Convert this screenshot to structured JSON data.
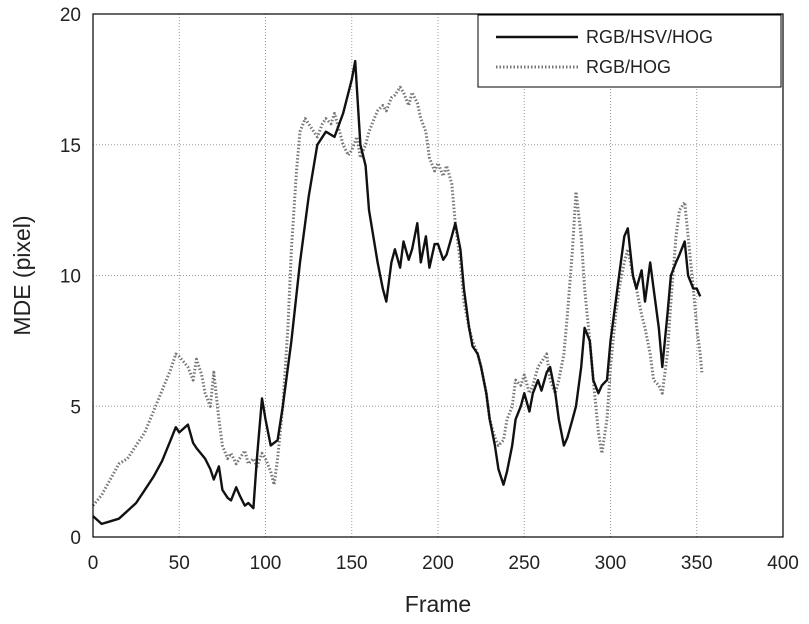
{
  "chart_data": {
    "type": "line",
    "title": "",
    "xlabel": "Frame",
    "ylabel": "MDE (pixel)",
    "xlim": [
      0,
      400
    ],
    "ylim": [
      0,
      20
    ],
    "xticks": [
      0,
      50,
      100,
      150,
      200,
      250,
      300,
      350,
      400
    ],
    "yticks": [
      0,
      5,
      10,
      15,
      20
    ],
    "grid": true,
    "legend_position": "top-right",
    "series": [
      {
        "name": "RGB/HSV/HOG",
        "style": "solid",
        "color": "#111111",
        "points": [
          [
            0,
            0.8
          ],
          [
            5,
            0.5
          ],
          [
            10,
            0.6
          ],
          [
            15,
            0.7
          ],
          [
            20,
            1.0
          ],
          [
            25,
            1.3
          ],
          [
            30,
            1.8
          ],
          [
            35,
            2.3
          ],
          [
            40,
            2.9
          ],
          [
            45,
            3.7
          ],
          [
            48,
            4.2
          ],
          [
            50,
            4.0
          ],
          [
            55,
            4.3
          ],
          [
            58,
            3.6
          ],
          [
            60,
            3.4
          ],
          [
            65,
            3.0
          ],
          [
            68,
            2.6
          ],
          [
            70,
            2.2
          ],
          [
            73,
            2.7
          ],
          [
            75,
            1.8
          ],
          [
            78,
            1.5
          ],
          [
            80,
            1.4
          ],
          [
            83,
            1.9
          ],
          [
            85,
            1.6
          ],
          [
            88,
            1.2
          ],
          [
            90,
            1.3
          ],
          [
            93,
            1.1
          ],
          [
            95,
            3.0
          ],
          [
            98,
            5.3
          ],
          [
            100,
            4.5
          ],
          [
            103,
            3.5
          ],
          [
            107,
            3.7
          ],
          [
            110,
            5.0
          ],
          [
            115,
            7.5
          ],
          [
            120,
            10.5
          ],
          [
            125,
            13.0
          ],
          [
            130,
            15.0
          ],
          [
            135,
            15.5
          ],
          [
            140,
            15.3
          ],
          [
            145,
            16.2
          ],
          [
            150,
            17.5
          ],
          [
            152,
            18.2
          ],
          [
            155,
            15.0
          ],
          [
            158,
            14.2
          ],
          [
            160,
            12.5
          ],
          [
            165,
            10.5
          ],
          [
            168,
            9.5
          ],
          [
            170,
            9.0
          ],
          [
            173,
            10.5
          ],
          [
            175,
            11.0
          ],
          [
            178,
            10.3
          ],
          [
            180,
            11.3
          ],
          [
            183,
            10.6
          ],
          [
            185,
            11.0
          ],
          [
            188,
            12.0
          ],
          [
            190,
            10.5
          ],
          [
            193,
            11.5
          ],
          [
            195,
            10.3
          ],
          [
            198,
            11.2
          ],
          [
            200,
            11.2
          ],
          [
            203,
            10.6
          ],
          [
            205,
            10.8
          ],
          [
            208,
            11.5
          ],
          [
            210,
            12.0
          ],
          [
            213,
            11.0
          ],
          [
            215,
            9.5
          ],
          [
            218,
            8.0
          ],
          [
            220,
            7.3
          ],
          [
            223,
            7.0
          ],
          [
            225,
            6.5
          ],
          [
            228,
            5.5
          ],
          [
            230,
            4.5
          ],
          [
            233,
            3.5
          ],
          [
            235,
            2.6
          ],
          [
            238,
            2.0
          ],
          [
            240,
            2.5
          ],
          [
            243,
            3.5
          ],
          [
            245,
            4.5
          ],
          [
            248,
            5.0
          ],
          [
            250,
            5.5
          ],
          [
            253,
            4.8
          ],
          [
            255,
            5.5
          ],
          [
            258,
            6.0
          ],
          [
            260,
            5.6
          ],
          [
            263,
            6.3
          ],
          [
            265,
            6.5
          ],
          [
            268,
            5.5
          ],
          [
            270,
            4.5
          ],
          [
            273,
            3.5
          ],
          [
            275,
            3.8
          ],
          [
            278,
            4.5
          ],
          [
            280,
            5.0
          ],
          [
            283,
            6.5
          ],
          [
            285,
            8.0
          ],
          [
            288,
            7.5
          ],
          [
            290,
            6.0
          ],
          [
            293,
            5.5
          ],
          [
            295,
            5.8
          ],
          [
            298,
            6.0
          ],
          [
            300,
            7.5
          ],
          [
            303,
            9.0
          ],
          [
            305,
            10.0
          ],
          [
            308,
            11.5
          ],
          [
            310,
            11.8
          ],
          [
            313,
            10.0
          ],
          [
            315,
            9.5
          ],
          [
            318,
            10.2
          ],
          [
            320,
            9.0
          ],
          [
            323,
            10.5
          ],
          [
            325,
            9.5
          ],
          [
            328,
            8.0
          ],
          [
            330,
            6.5
          ],
          [
            333,
            8.5
          ],
          [
            335,
            10.0
          ],
          [
            338,
            10.5
          ],
          [
            340,
            10.8
          ],
          [
            343,
            11.3
          ],
          [
            345,
            10.0
          ],
          [
            348,
            9.5
          ],
          [
            350,
            9.5
          ],
          [
            352,
            9.2
          ]
        ]
      },
      {
        "name": "RGB/HOG",
        "style": "dotted",
        "color": "#777777",
        "points": [
          [
            0,
            1.2
          ],
          [
            5,
            1.6
          ],
          [
            10,
            2.2
          ],
          [
            15,
            2.8
          ],
          [
            20,
            3.0
          ],
          [
            25,
            3.5
          ],
          [
            30,
            4.0
          ],
          [
            35,
            4.8
          ],
          [
            40,
            5.6
          ],
          [
            45,
            6.4
          ],
          [
            48,
            7.0
          ],
          [
            50,
            6.9
          ],
          [
            55,
            6.5
          ],
          [
            58,
            6.0
          ],
          [
            60,
            6.8
          ],
          [
            63,
            6.2
          ],
          [
            65,
            5.5
          ],
          [
            68,
            5.0
          ],
          [
            70,
            6.3
          ],
          [
            73,
            4.5
          ],
          [
            75,
            3.5
          ],
          [
            78,
            3.0
          ],
          [
            80,
            3.2
          ],
          [
            83,
            2.8
          ],
          [
            85,
            3.0
          ],
          [
            88,
            3.3
          ],
          [
            90,
            2.8
          ],
          [
            93,
            3.0
          ],
          [
            95,
            2.7
          ],
          [
            98,
            3.2
          ],
          [
            100,
            3.0
          ],
          [
            103,
            2.5
          ],
          [
            105,
            2.0
          ],
          [
            107,
            3.0
          ],
          [
            110,
            5.0
          ],
          [
            113,
            8.0
          ],
          [
            115,
            11.0
          ],
          [
            118,
            14.0
          ],
          [
            120,
            15.5
          ],
          [
            123,
            16.0
          ],
          [
            125,
            15.8
          ],
          [
            128,
            15.5
          ],
          [
            130,
            15.3
          ],
          [
            133,
            15.8
          ],
          [
            135,
            16.0
          ],
          [
            138,
            15.8
          ],
          [
            140,
            16.2
          ],
          [
            143,
            15.5
          ],
          [
            145,
            15.0
          ],
          [
            148,
            14.6
          ],
          [
            150,
            14.8
          ],
          [
            153,
            15.3
          ],
          [
            155,
            14.5
          ],
          [
            158,
            15.0
          ],
          [
            160,
            15.5
          ],
          [
            163,
            16.0
          ],
          [
            165,
            16.3
          ],
          [
            168,
            16.5
          ],
          [
            170,
            16.3
          ],
          [
            173,
            16.8
          ],
          [
            175,
            16.9
          ],
          [
            178,
            17.2
          ],
          [
            180,
            17.0
          ],
          [
            183,
            16.5
          ],
          [
            185,
            17.0
          ],
          [
            188,
            16.6
          ],
          [
            190,
            16.0
          ],
          [
            193,
            15.5
          ],
          [
            195,
            14.5
          ],
          [
            198,
            14.0
          ],
          [
            200,
            14.3
          ],
          [
            203,
            13.8
          ],
          [
            205,
            14.2
          ],
          [
            208,
            13.5
          ],
          [
            210,
            12.0
          ],
          [
            213,
            10.5
          ],
          [
            215,
            9.0
          ],
          [
            218,
            8.0
          ],
          [
            220,
            7.5
          ],
          [
            223,
            7.0
          ],
          [
            225,
            6.5
          ],
          [
            228,
            5.5
          ],
          [
            230,
            4.5
          ],
          [
            233,
            3.8
          ],
          [
            235,
            3.5
          ],
          [
            238,
            3.7
          ],
          [
            240,
            4.5
          ],
          [
            243,
            5.0
          ],
          [
            245,
            6.0
          ],
          [
            248,
            5.8
          ],
          [
            250,
            6.2
          ],
          [
            253,
            5.5
          ],
          [
            255,
            5.8
          ],
          [
            258,
            6.5
          ],
          [
            260,
            6.7
          ],
          [
            263,
            7.0
          ],
          [
            265,
            6.0
          ],
          [
            268,
            5.5
          ],
          [
            270,
            6.0
          ],
          [
            273,
            7.0
          ],
          [
            275,
            8.5
          ],
          [
            278,
            11.0
          ],
          [
            280,
            13.2
          ],
          [
            283,
            11.5
          ],
          [
            285,
            9.5
          ],
          [
            288,
            7.5
          ],
          [
            290,
            6.0
          ],
          [
            293,
            4.0
          ],
          [
            295,
            3.2
          ],
          [
            298,
            4.5
          ],
          [
            300,
            6.5
          ],
          [
            303,
            8.5
          ],
          [
            305,
            9.5
          ],
          [
            308,
            10.5
          ],
          [
            310,
            11.0
          ],
          [
            313,
            10.0
          ],
          [
            315,
            9.5
          ],
          [
            318,
            8.5
          ],
          [
            320,
            8.0
          ],
          [
            323,
            7.0
          ],
          [
            325,
            6.0
          ],
          [
            328,
            5.8
          ],
          [
            330,
            5.5
          ],
          [
            333,
            7.0
          ],
          [
            335,
            9.0
          ],
          [
            338,
            11.5
          ],
          [
            340,
            12.5
          ],
          [
            343,
            12.8
          ],
          [
            345,
            11.5
          ],
          [
            348,
            9.5
          ],
          [
            350,
            8.0
          ],
          [
            352,
            7.0
          ],
          [
            353,
            6.3
          ]
        ]
      }
    ]
  }
}
